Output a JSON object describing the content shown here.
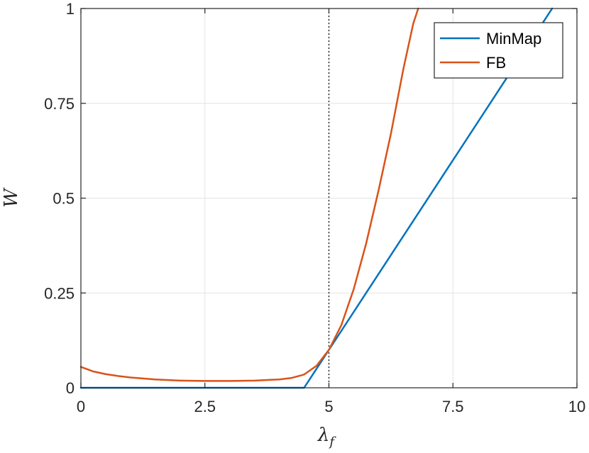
{
  "chart_data": {
    "type": "line",
    "title": "",
    "xlabel": "λ",
    "xlabel_sub": "f",
    "ylabel": "W",
    "xlim": [
      0,
      10
    ],
    "ylim": [
      0,
      1
    ],
    "xticks": [
      0,
      2.5,
      5,
      7.5,
      10
    ],
    "xtick_labels": [
      "0",
      "2.5",
      "5",
      "7.5",
      "10"
    ],
    "yticks": [
      0,
      0.25,
      0.5,
      0.75,
      1
    ],
    "ytick_labels": [
      "0",
      "0.25",
      "0.5",
      "0.75",
      "1"
    ],
    "grid": true,
    "legend_position": "top-right",
    "reference_line": {
      "x": 5,
      "style": "dotted"
    },
    "series": [
      {
        "name": "MinMap",
        "color": "#0072BD",
        "x": [
          0,
          4.5,
          5,
          9.5
        ],
        "y": [
          0,
          0,
          0.1,
          1.0
        ]
      },
      {
        "name": "FB",
        "color": "#D95319",
        "x": [
          0,
          0.25,
          0.5,
          0.75,
          1.0,
          1.5,
          2.0,
          2.5,
          3.0,
          3.5,
          4.0,
          4.25,
          4.5,
          4.75,
          5.0,
          5.25,
          5.5,
          5.75,
          6.0,
          6.25,
          6.5,
          6.7,
          6.8
        ],
        "y": [
          0.055,
          0.043,
          0.036,
          0.031,
          0.027,
          0.022,
          0.019,
          0.018,
          0.018,
          0.019,
          0.022,
          0.026,
          0.035,
          0.058,
          0.1,
          0.165,
          0.26,
          0.38,
          0.52,
          0.67,
          0.84,
          0.96,
          1.0
        ]
      }
    ]
  }
}
